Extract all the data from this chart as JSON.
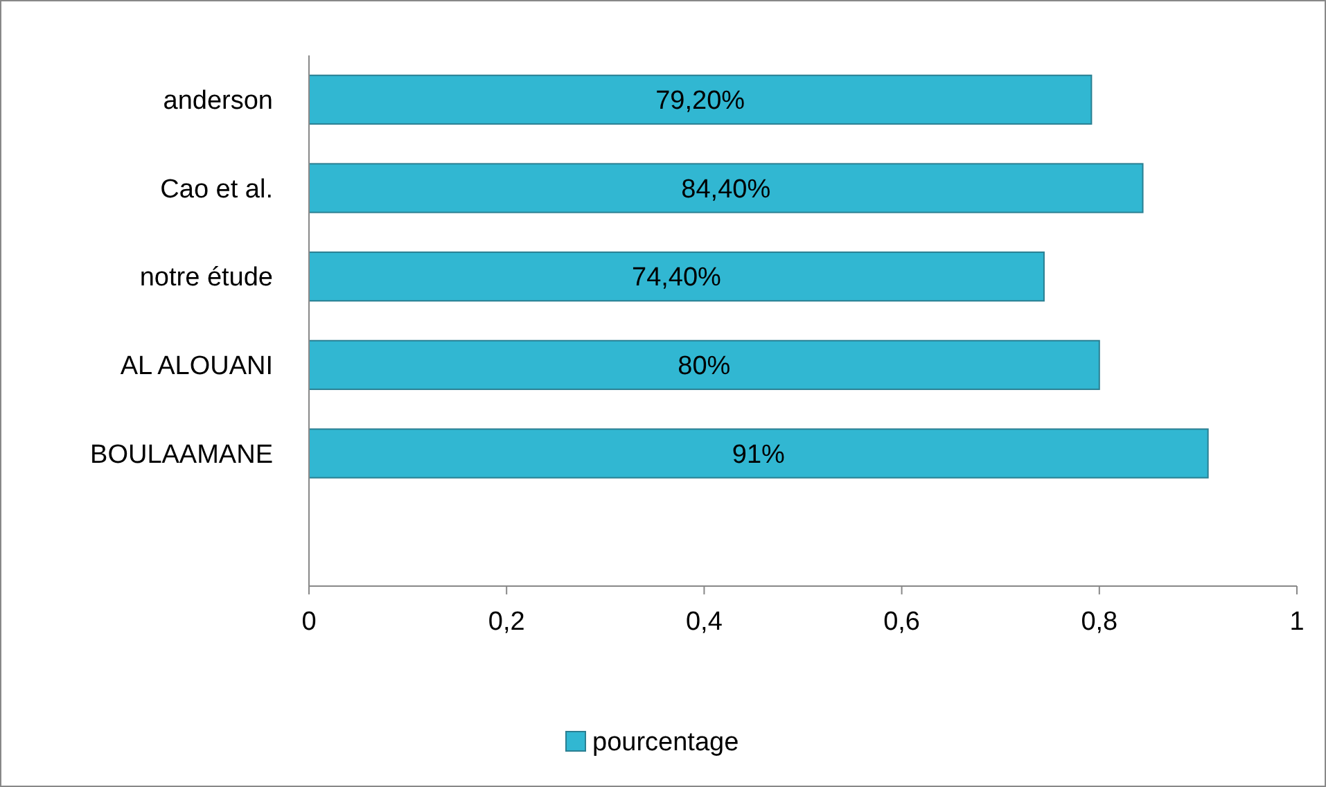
{
  "chart_data": {
    "type": "bar",
    "orientation": "horizontal",
    "categories": [
      "anderson",
      "Cao et al.",
      "notre étude",
      "AL ALOUANI",
      "BOULAAMANE",
      null
    ],
    "series": [
      {
        "name": "pourcentage",
        "color": "#31b7d2",
        "values": [
          0.792,
          0.844,
          0.744,
          0.8,
          0.91,
          null
        ],
        "value_labels": [
          "79,20%",
          "84,40%",
          "74,40%",
          "80%",
          "91%",
          null
        ]
      }
    ],
    "xlim": [
      0,
      1
    ],
    "xticks": [
      0,
      {
        "value": 0.2,
        "label": "0,2"
      },
      {
        "value": 0.4,
        "label": "0,4"
      },
      {
        "value": 0.6,
        "label": "0,6"
      },
      {
        "value": 0.8,
        "label": "0,8"
      },
      1
    ],
    "grid": false,
    "legend": "bottom"
  }
}
